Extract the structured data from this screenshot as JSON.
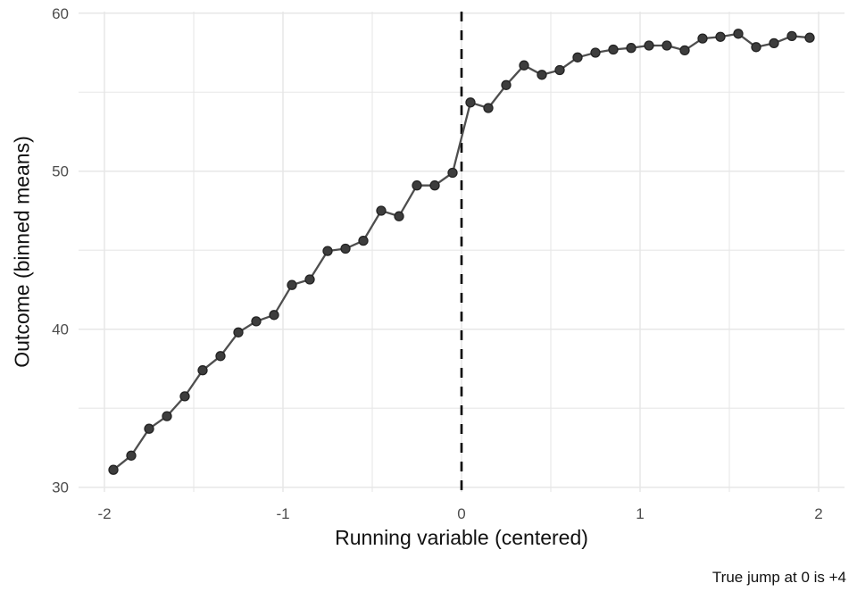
{
  "chart_data": {
    "type": "line",
    "title": "",
    "xlabel": "Running variable (centered)",
    "ylabel": "Outcome (binned means)",
    "caption": "True jump at 0 is +4",
    "legend": "none",
    "grid": "on",
    "xlim": [
      -2.145,
      2.145
    ],
    "ylim": [
      29.7,
      60.1
    ],
    "x_major_ticks": [
      -2,
      -1,
      0,
      1,
      2
    ],
    "x_tick_labels": [
      "-2",
      "-1",
      "0",
      "1",
      "2"
    ],
    "x_minor_ticks": [
      -1.5,
      -0.5,
      0.5,
      1.5
    ],
    "y_major_ticks": [
      30,
      40,
      50,
      60
    ],
    "y_tick_labels": [
      "30",
      "40",
      "50",
      "60"
    ],
    "y_minor_ticks": [
      35,
      45,
      55
    ],
    "vline_x": 0,
    "series": [
      {
        "name": "binned-means",
        "x": [
          -1.95,
          -1.85,
          -1.75,
          -1.65,
          -1.55,
          -1.45,
          -1.35,
          -1.25,
          -1.15,
          -1.05,
          -0.95,
          -0.85,
          -0.75,
          -0.65,
          -0.55,
          -0.45,
          -0.35,
          -0.25,
          -0.15,
          -0.05,
          0.05,
          0.15,
          0.25,
          0.35,
          0.45,
          0.55,
          0.65,
          0.75,
          0.85,
          0.95,
          1.05,
          1.15,
          1.25,
          1.35,
          1.45,
          1.55,
          1.65,
          1.75,
          1.85,
          1.95
        ],
        "y": [
          31.1,
          32.0,
          33.7,
          34.5,
          35.75,
          37.4,
          38.3,
          39.8,
          40.5,
          40.9,
          42.8,
          43.15,
          44.95,
          45.1,
          45.6,
          47.5,
          47.15,
          49.1,
          49.1,
          49.9,
          54.35,
          54.0,
          55.45,
          56.7,
          56.1,
          56.4,
          57.2,
          57.5,
          57.7,
          57.8,
          57.95,
          57.95,
          57.65,
          58.4,
          58.5,
          58.7,
          57.85,
          58.1,
          58.55,
          58.45
        ]
      }
    ],
    "colors": {
      "grid": "#e7e7e7",
      "line": "#4e4e4e",
      "point_fill": "#3d3d3d",
      "point_stroke": "#232323",
      "vline": "#000000",
      "tick_text": "#4d4d4d",
      "title_text": "#111111",
      "background": "#ffffff"
    }
  }
}
